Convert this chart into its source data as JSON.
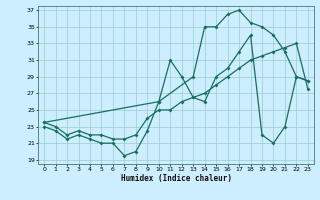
{
  "xlabel": "Humidex (Indice chaleur)",
  "background_color": "#cceeff",
  "grid_color": "#99cccc",
  "line_color": "#1a6e5e",
  "xlim": [
    -0.5,
    23.5
  ],
  "ylim": [
    18.5,
    37.5
  ],
  "xticks": [
    0,
    1,
    2,
    3,
    4,
    5,
    6,
    7,
    8,
    9,
    10,
    11,
    12,
    13,
    14,
    15,
    16,
    17,
    18,
    19,
    20,
    21,
    22,
    23
  ],
  "yticks": [
    19,
    21,
    23,
    25,
    27,
    29,
    31,
    33,
    35,
    37
  ],
  "line1_x": [
    0,
    1,
    2,
    3,
    4,
    5,
    6,
    7,
    8,
    9,
    10,
    11,
    12,
    13,
    14,
    15,
    16,
    17,
    18,
    19,
    20,
    21,
    22,
    23
  ],
  "line1_y": [
    23,
    22.5,
    21.5,
    22,
    21.5,
    21,
    21,
    19.5,
    20,
    22.5,
    26,
    31,
    29,
    26.5,
    26,
    29,
    30,
    32,
    34,
    22,
    21,
    23,
    29,
    28.5
  ],
  "line2_x": [
    0,
    1,
    2,
    3,
    4,
    5,
    6,
    7,
    8,
    9,
    10,
    11,
    12,
    13,
    14,
    15,
    16,
    17,
    18,
    19,
    20,
    21,
    22,
    23
  ],
  "line2_y": [
    23.5,
    23,
    22,
    22.5,
    22,
    22,
    21.5,
    21.5,
    22,
    24,
    25,
    25,
    26,
    26.5,
    27,
    28,
    29,
    30,
    31,
    31.5,
    32,
    32.5,
    33,
    27.5
  ],
  "line3_x": [
    0,
    10,
    13,
    14,
    15,
    16,
    17,
    18,
    19,
    20,
    21,
    22,
    23
  ],
  "line3_y": [
    23.5,
    26,
    29,
    35,
    35,
    36.5,
    37,
    35.5,
    35,
    34,
    32,
    29,
    28.5
  ]
}
